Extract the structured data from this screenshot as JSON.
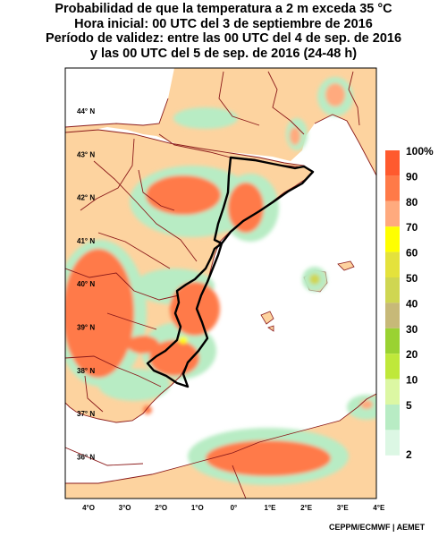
{
  "title": {
    "line1": "Probabilidad de que la temperatura a 2 m exceda 35 °C",
    "line2": "Hora inicial: 00 UTC del 3 de septiembre de 2016",
    "line3": "Período de validez: entre las 00 UTC del 4 de sep. de 2016",
    "line4": "y las 00 UTC del 5 de sep. de 2016 (24-48 h)"
  },
  "latitudes": [
    {
      "label": "44° N",
      "value": 44
    },
    {
      "label": "43° N",
      "value": 43
    },
    {
      "label": "42° N",
      "value": 42
    },
    {
      "label": "41° N",
      "value": 41
    },
    {
      "label": "40° N",
      "value": 40
    },
    {
      "label": "39° N",
      "value": 39
    },
    {
      "label": "38° N",
      "value": 38
    },
    {
      "label": "37° N",
      "value": 37
    },
    {
      "label": "36° N",
      "value": 36
    }
  ],
  "longitudes": [
    {
      "label": "4°O",
      "value": -4
    },
    {
      "label": "3°O",
      "value": -3
    },
    {
      "label": "2°O",
      "value": -2
    },
    {
      "label": "1°O",
      "value": -1
    },
    {
      "label": "0°",
      "value": 0
    },
    {
      "label": "1°E",
      "value": 1
    },
    {
      "label": "2°E",
      "value": 2
    },
    {
      "label": "3°E",
      "value": 3
    },
    {
      "label": "4°E",
      "value": 4
    }
  ],
  "legend": {
    "labels": [
      "100%",
      "90",
      "80",
      "70",
      "60",
      "50",
      "40",
      "30",
      "20",
      "10",
      "5",
      "2"
    ],
    "colors": [
      "#ff5a2e",
      "#ff7a48",
      "#ffaa7e",
      "#ffff00",
      "#e4e23c",
      "#cfd652",
      "#c7b978",
      "#9ad232",
      "#bfe83a",
      "#dcf7a3",
      "#b8ecc4",
      "#dcf7e4"
    ]
  },
  "colors": {
    "land": "#fdd39f",
    "sea": "#ffffff",
    "border": "#8b1a1a",
    "region_outline": "#000000"
  },
  "credit": "CEPPM/ECMWF | AEMET"
}
